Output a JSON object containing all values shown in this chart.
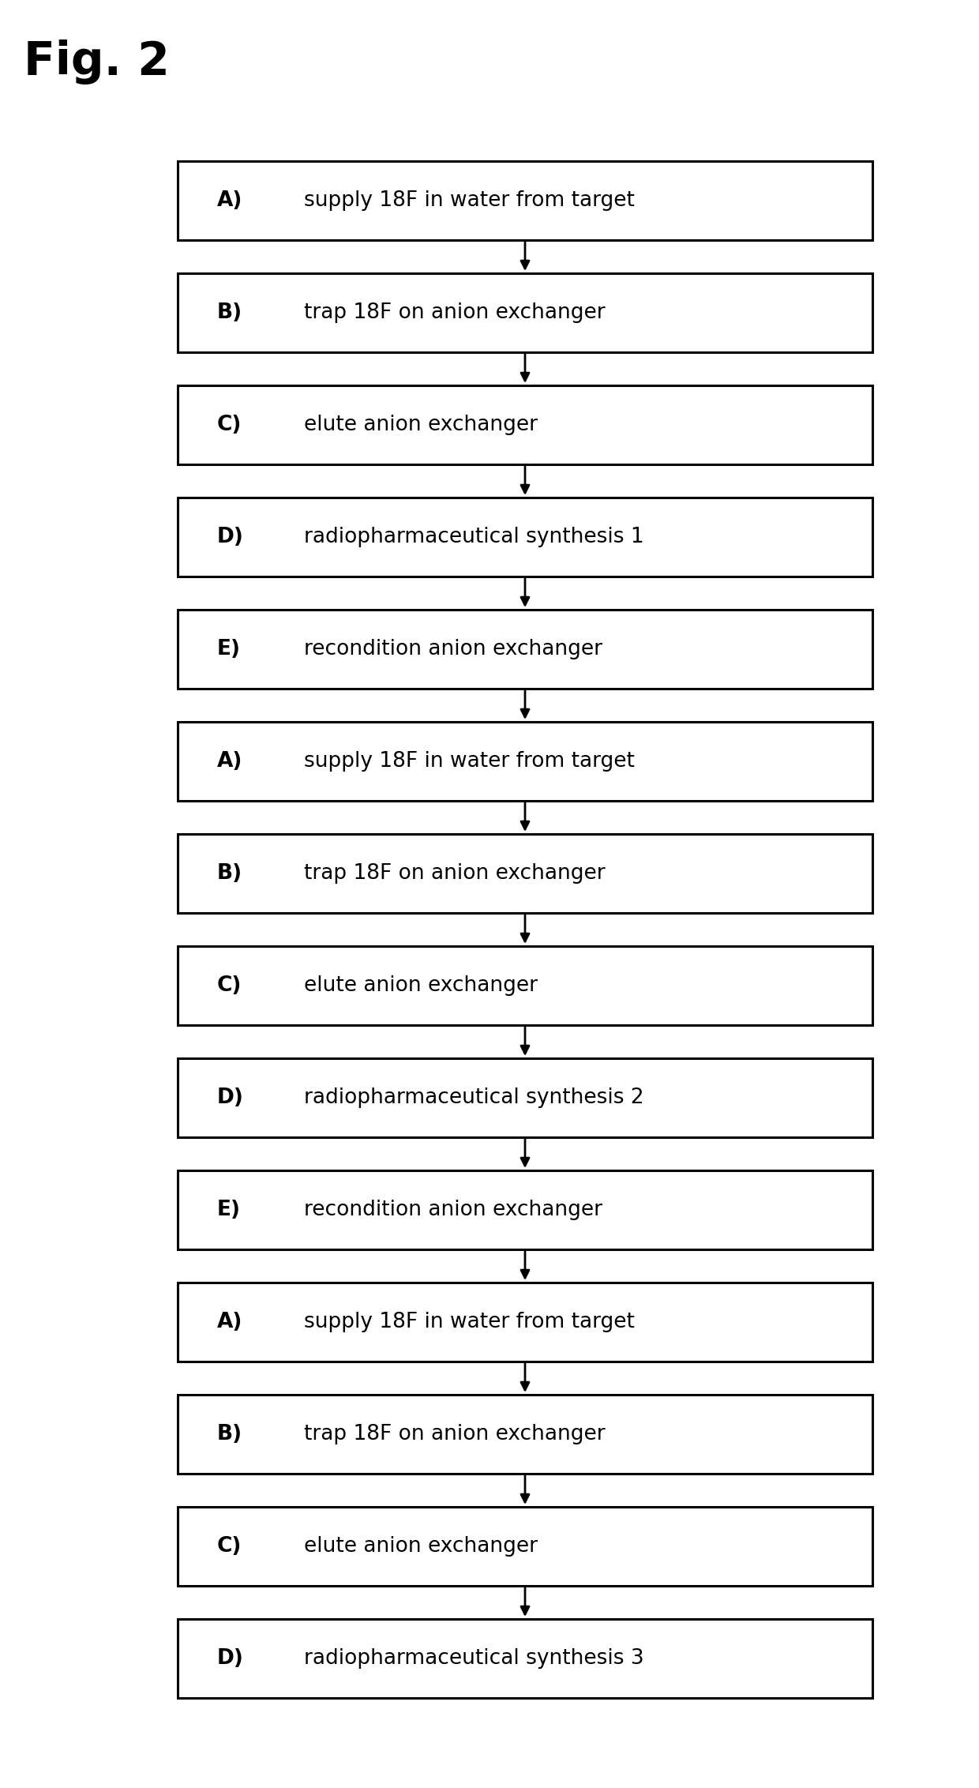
{
  "title": "Fig. 2",
  "title_fontsize": 42,
  "title_fontweight": "bold",
  "background_color": "#ffffff",
  "box_color": "#ffffff",
  "box_edge_color": "#000000",
  "box_edge_width": 2.2,
  "text_color": "#000000",
  "arrow_color": "#000000",
  "steps": [
    {
      "label": "A)",
      "text": "supply 18F in water from target"
    },
    {
      "label": "B)",
      "text": "trap 18F on anion exchanger"
    },
    {
      "label": "C)",
      "text": "elute anion exchanger"
    },
    {
      "label": "D)",
      "text": "radiopharmaceutical synthesis 1"
    },
    {
      "label": "E)",
      "text": "recondition anion exchanger"
    },
    {
      "label": "A)",
      "text": "supply 18F in water from target"
    },
    {
      "label": "B)",
      "text": "trap 18F on anion exchanger"
    },
    {
      "label": "C)",
      "text": "elute anion exchanger"
    },
    {
      "label": "D)",
      "text": "radiopharmaceutical synthesis 2"
    },
    {
      "label": "E)",
      "text": "recondition anion exchanger"
    },
    {
      "label": "A)",
      "text": "supply 18F in water from target"
    },
    {
      "label": "B)",
      "text": "trap 18F on anion exchanger"
    },
    {
      "label": "C)",
      "text": "elute anion exchanger"
    },
    {
      "label": "D)",
      "text": "radiopharmaceutical synthesis 3"
    }
  ],
  "fig_width": 12.4,
  "fig_height": 22.64,
  "font_size": 19,
  "label_font_size": 19
}
